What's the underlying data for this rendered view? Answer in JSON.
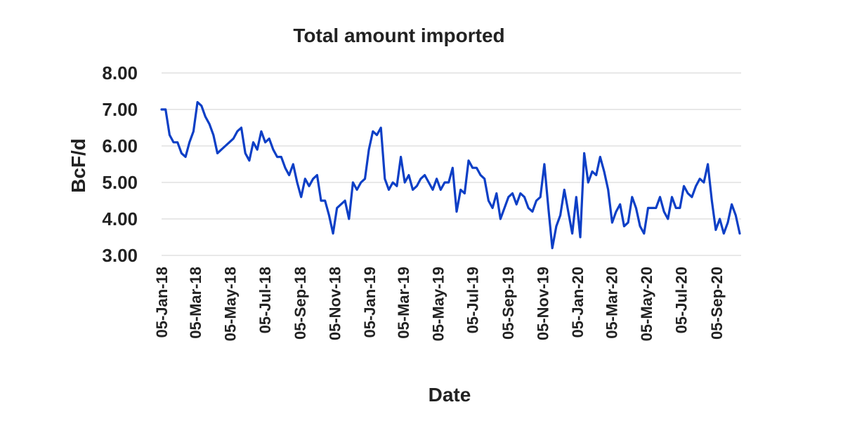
{
  "chart_data": {
    "type": "line",
    "title": "Total amount imported",
    "xlabel": "Date",
    "ylabel": "BcF/d",
    "ylim": [
      3.0,
      8.0
    ],
    "yticks": [
      "8.00",
      "7.00",
      "6.00",
      "5.00",
      "4.00",
      "3.00"
    ],
    "ytick_values": [
      8,
      7,
      6,
      5,
      4,
      3
    ],
    "xtick_labels": [
      "05-Jan-18",
      "05-Mar-18",
      "05-May-18",
      "05-Jul-18",
      "05-Sep-18",
      "05-Nov-18",
      "05-Jan-19",
      "05-Mar-19",
      "05-May-19",
      "05-Jul-19",
      "05-Sep-19",
      "05-Nov-19",
      "05-Jan-20",
      "05-Mar-20",
      "05-May-20",
      "05-Jul-20",
      "05-Sep-20"
    ],
    "x_start": "2018-01-05",
    "x_step": "weekly",
    "grid": true,
    "legend": "none",
    "color": "#0d3fc6",
    "series": [
      {
        "values": [
          7.0,
          7.0,
          6.3,
          6.1,
          6.1,
          5.8,
          5.7,
          6.1,
          6.4,
          7.2,
          7.1,
          6.8,
          6.6,
          6.3,
          5.8,
          5.9,
          6.0,
          6.1,
          6.2,
          6.4,
          6.5,
          5.8,
          5.6,
          6.1,
          5.9,
          6.4,
          6.1,
          6.2,
          5.9,
          5.7,
          5.7,
          5.4,
          5.2,
          5.5,
          5.0,
          4.6,
          5.1,
          4.9,
          5.1,
          5.2,
          4.5,
          4.5,
          4.1,
          3.6,
          4.3,
          4.4,
          4.5,
          4.0,
          5.0,
          4.8,
          5.0,
          5.1,
          5.9,
          6.4,
          6.3,
          6.5,
          5.1,
          4.8,
          5.0,
          4.9,
          5.7,
          5.0,
          5.2,
          4.8,
          4.9,
          5.1,
          5.2,
          5.0,
          4.8,
          5.1,
          4.8,
          5.0,
          5.0,
          5.4,
          4.2,
          4.8,
          4.7,
          5.6,
          5.4,
          5.4,
          5.2,
          5.1,
          4.5,
          4.3,
          4.7,
          4.0,
          4.3,
          4.6,
          4.7,
          4.4,
          4.7,
          4.6,
          4.3,
          4.2,
          4.5,
          4.6,
          5.5,
          4.3,
          3.2,
          3.8,
          4.1,
          4.8,
          4.2,
          3.6,
          4.6,
          3.5,
          5.8,
          5.0,
          5.3,
          5.2,
          5.7,
          5.3,
          4.8,
          3.9,
          4.2,
          4.4,
          3.8,
          3.9,
          4.6,
          4.3,
          3.8,
          3.6,
          4.3,
          4.3,
          4.3,
          4.6,
          4.2,
          4.0,
          4.6,
          4.3,
          4.3,
          4.9,
          4.7,
          4.6,
          4.9,
          5.1,
          5.0,
          5.5,
          4.5,
          3.7,
          4.0,
          3.6,
          3.9,
          4.4,
          4.1,
          3.6
        ]
      }
    ]
  }
}
